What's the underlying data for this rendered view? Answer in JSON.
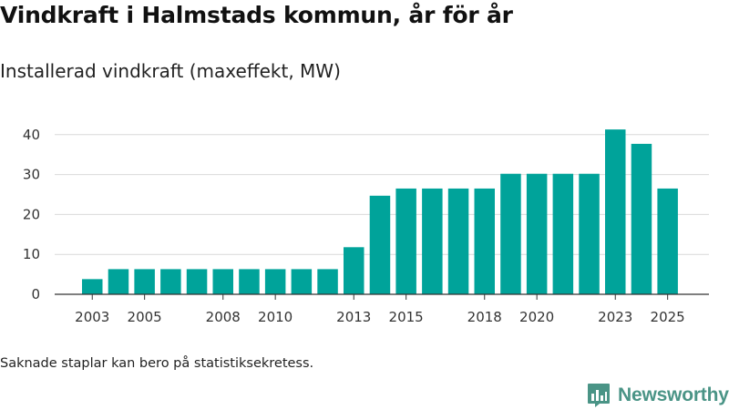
{
  "title": "Vindkraft i Halmstads kommun, år för år",
  "subtitle": "Installerad vindkraft (maxeffekt, MW)",
  "footnote": "Saknade staplar kan bero på statistiksekretess.",
  "brand": {
    "name": "Newsworthy",
    "color": "#4a9486",
    "icon": "newsworthy-logo-icon"
  },
  "colors": {
    "bar": "#00a39a",
    "grid": "#d9d9d9",
    "axis": "#333333"
  },
  "chart_data": {
    "type": "bar",
    "title": "Vindkraft i Halmstads kommun, år för år",
    "ylabel": "Installerad vindkraft (maxeffekt, MW)",
    "xlabel": "",
    "categories": [
      "2003",
      "2004",
      "2005",
      "2006",
      "2007",
      "2008",
      "2009",
      "2010",
      "2011",
      "2012",
      "2013",
      "2014",
      "2015",
      "2016",
      "2017",
      "2018",
      "2019",
      "2020",
      "2021",
      "2022",
      "2023",
      "2024",
      "2025"
    ],
    "values": [
      3.8,
      6.3,
      6.3,
      6.3,
      6.3,
      6.3,
      6.3,
      6.3,
      6.3,
      6.3,
      11.8,
      24.7,
      26.5,
      26.5,
      26.5,
      26.5,
      30.2,
      30.2,
      30.2,
      30.2,
      41.3,
      37.7,
      26.5
    ],
    "x_tick_labels": [
      "2003",
      "2005",
      "2008",
      "2010",
      "2013",
      "2015",
      "2018",
      "2020",
      "2023",
      "2025"
    ],
    "y_ticks": [
      0,
      10,
      20,
      30,
      40
    ],
    "ylim": [
      0,
      45
    ],
    "grid": true,
    "legend": "none"
  }
}
